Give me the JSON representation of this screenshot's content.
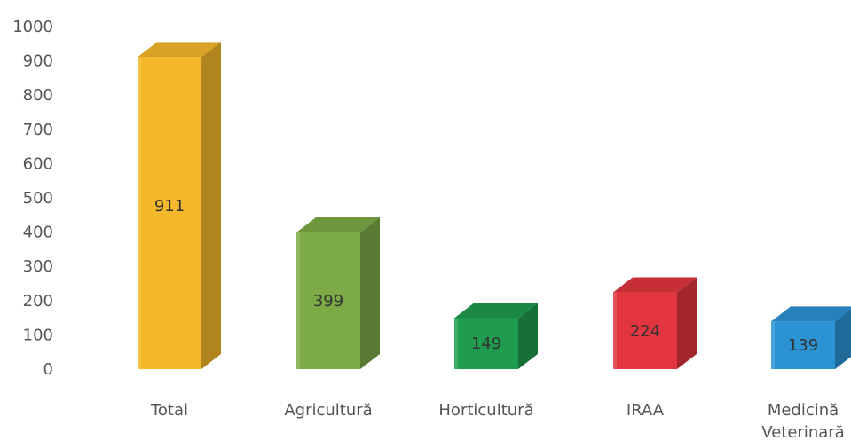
{
  "chart_data": {
    "type": "bar",
    "style": "3d-column",
    "categories": [
      "Total",
      "Agricultură",
      "Horticultură",
      "IRAA",
      "Medicină Veterinară"
    ],
    "category_lines": [
      [
        "Total"
      ],
      [
        "Agricultură"
      ],
      [
        "Horticultură"
      ],
      [
        "IRAA"
      ],
      [
        "Medicină",
        "Veterinară"
      ]
    ],
    "values": [
      911,
      399,
      149,
      224,
      139
    ],
    "value_labels": [
      "911",
      "399",
      "149",
      "224",
      "139"
    ],
    "colors": [
      "#f5b82a",
      "#7caa45",
      "#1f9c4e",
      "#e2353f",
      "#2b93d4"
    ],
    "ylim": [
      0,
      1000
    ],
    "yticks": [
      0,
      100,
      200,
      300,
      400,
      500,
      600,
      700,
      800,
      900,
      1000
    ],
    "grid": false,
    "legend": "none",
    "title": "",
    "xlabel": "",
    "ylabel": ""
  }
}
